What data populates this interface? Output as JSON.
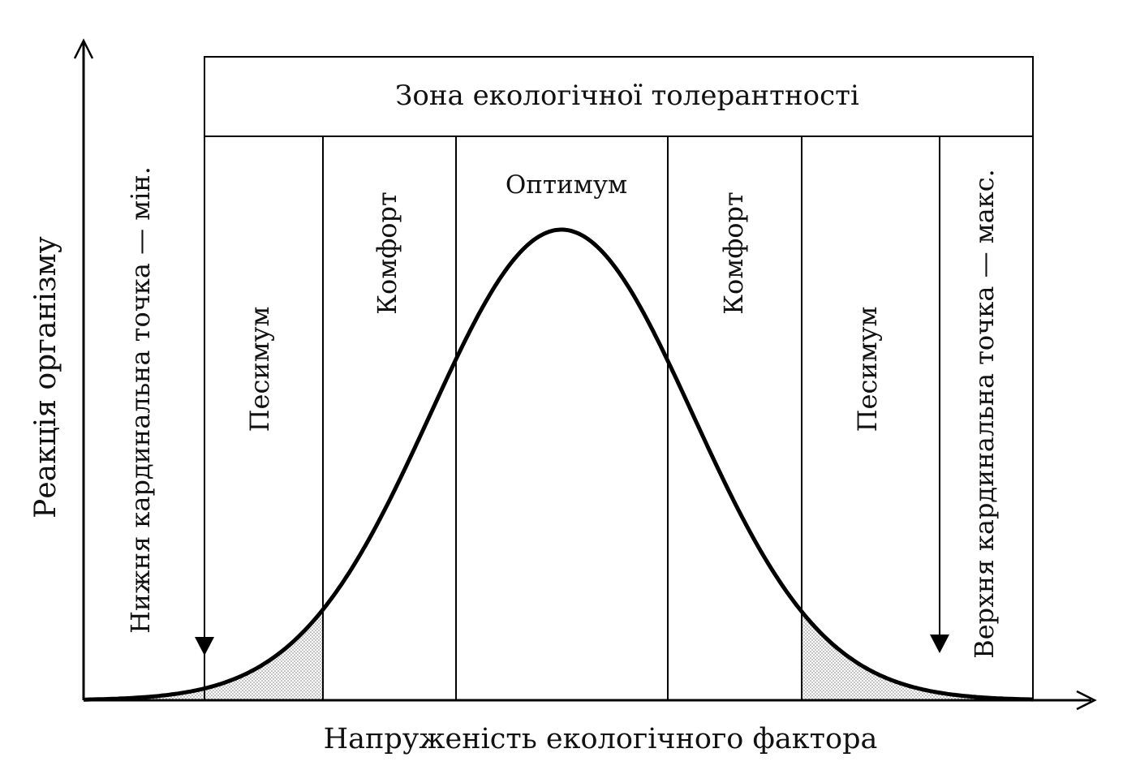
{
  "diagram": {
    "title_zone": "Зона екологічної толерантності",
    "x_axis_label": "Напруженість екологічного фактора",
    "y_axis_label": "Реакція організму",
    "zones": {
      "optimum": "Оптимум",
      "comfort_left": "Комфорт",
      "comfort_right": "Комфорт",
      "pessimum_left": "Песимум",
      "pessimum_right": "Песимум"
    },
    "cardinal_points": {
      "lower": "Нижня кардинальна точка — мін.",
      "upper": "Верхня кардинальна точка — макс."
    },
    "colors": {
      "line": "#000000",
      "shade": "#d8d8d8"
    }
  }
}
